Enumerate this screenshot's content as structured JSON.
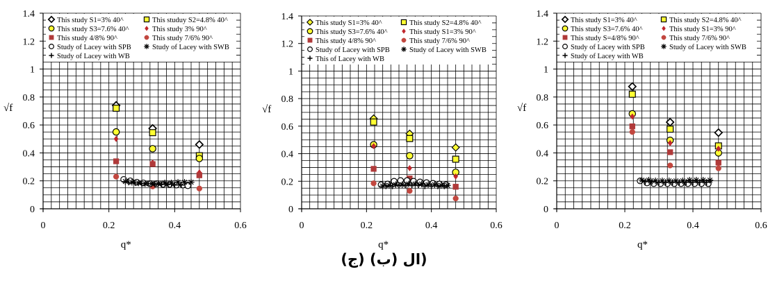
{
  "caption": "(ال   (ب) (ج)",
  "colors": {
    "grid": "#000000",
    "yellow_fill": "#ffff33",
    "red_dark": "#b03a3a",
    "red_bright": "#c0262c",
    "red_dot": "#c2473f",
    "outline": "#000000"
  },
  "chart_data": [
    {
      "id": "a",
      "type": "scatter",
      "xlabel": "q*",
      "ylabel": "√f",
      "xlim": [
        0,
        0.6
      ],
      "ylim": [
        0,
        1.4
      ],
      "xticks": [
        "0",
        "0.2",
        "0.4",
        "0.6"
      ],
      "yticks": [
        "0",
        "0.2",
        "0.4",
        "0.6",
        "0.8",
        "1",
        "1.2",
        "1.4"
      ],
      "grid": true,
      "legend_position": "top",
      "legend": [
        {
          "label": "This study S1=3% 40^",
          "marker": "diamond-open"
        },
        {
          "label": "This studuy S2=4.8% 40^",
          "marker": "square-yellow"
        },
        {
          "label": "This study S3=7.6% 40^",
          "marker": "circle-yellow"
        },
        {
          "label": "This study 3% 90^",
          "marker": "diamond-red"
        },
        {
          "label": "This study 4/8% 90^",
          "marker": "square-red"
        },
        {
          "label": "This study 7/6% 90^",
          "marker": "circle-red"
        },
        {
          "label": "Study of Lacey with SPB",
          "marker": "circle-open"
        },
        {
          "label": "Study of Lacey with SWB",
          "marker": "asterisk"
        },
        {
          "label": "Study of Lacey with WB",
          "marker": "plus"
        }
      ],
      "series": [
        {
          "marker": "diamond-open",
          "x": [
            0.222,
            0.333,
            0.475
          ],
          "y": [
            0.74,
            0.575,
            0.46
          ]
        },
        {
          "marker": "square-yellow",
          "x": [
            0.222,
            0.333,
            0.475
          ],
          "y": [
            0.72,
            0.545,
            0.38
          ]
        },
        {
          "marker": "circle-yellow",
          "x": [
            0.222,
            0.333,
            0.475
          ],
          "y": [
            0.55,
            0.43,
            0.36
          ]
        },
        {
          "marker": "diamond-red",
          "x": [
            0.222,
            0.333,
            0.475
          ],
          "y": [
            0.5,
            0.33,
            0.26
          ]
        },
        {
          "marker": "square-red",
          "x": [
            0.222,
            0.333,
            0.475
          ],
          "y": [
            0.34,
            0.32,
            0.24
          ]
        },
        {
          "marker": "circle-red",
          "x": [
            0.222,
            0.333,
            0.475
          ],
          "y": [
            0.23,
            0.16,
            0.145
          ]
        },
        {
          "marker": "circle-open",
          "x": [
            0.245,
            0.265,
            0.285,
            0.305,
            0.325,
            0.345,
            0.365,
            0.385,
            0.405,
            0.425,
            0.44
          ],
          "y": [
            0.21,
            0.2,
            0.19,
            0.185,
            0.18,
            0.18,
            0.175,
            0.175,
            0.17,
            0.17,
            0.165
          ]
        },
        {
          "marker": "asterisk",
          "x": [
            0.25,
            0.27,
            0.29,
            0.31,
            0.33,
            0.35,
            0.37,
            0.39,
            0.41,
            0.43,
            0.45
          ],
          "y": [
            0.195,
            0.19,
            0.185,
            0.18,
            0.18,
            0.18,
            0.185,
            0.185,
            0.19,
            0.19,
            0.19
          ]
        },
        {
          "marker": "plus",
          "x": [
            0.26,
            0.28,
            0.3,
            0.32,
            0.34,
            0.36,
            0.38,
            0.4,
            0.42
          ],
          "y": [
            0.19,
            0.185,
            0.18,
            0.18,
            0.175,
            0.175,
            0.175,
            0.17,
            0.17
          ]
        }
      ]
    },
    {
      "id": "b",
      "type": "scatter",
      "xlabel": "q*",
      "ylabel": "√f",
      "xlim": [
        0,
        0.6
      ],
      "ylim": [
        0,
        1.4
      ],
      "xticks": [
        "0",
        "0.2",
        "0.4",
        "0.6"
      ],
      "yticks": [
        "0",
        "0.2",
        "0.4",
        "0.6",
        "0.8",
        "1",
        "1.2",
        "1.4"
      ],
      "grid": true,
      "legend_position": "top",
      "legend": [
        {
          "label": "This study S1=3% 40^",
          "marker": "diamond-yellow"
        },
        {
          "label": "This study S2=4.8% 40^",
          "marker": "square-yellow"
        },
        {
          "label": "This study S3=7.6% 40^",
          "marker": "circle-yellow"
        },
        {
          "label": "This study S1=3% 90^",
          "marker": "diamond-red"
        },
        {
          "label": "This study 4/8% 90^",
          "marker": "square-red"
        },
        {
          "label": "This study 7/6% 90^",
          "marker": "circle-red"
        },
        {
          "label": "Study of Lacey with SPB",
          "marker": "circle-open"
        },
        {
          "label": "Study of Lacey with SWB",
          "marker": "asterisk"
        },
        {
          "label": "This of Lacey with WB",
          "marker": "plus"
        }
      ],
      "series": [
        {
          "marker": "diamond-yellow",
          "x": [
            0.222,
            0.333,
            0.475
          ],
          "y": [
            0.655,
            0.545,
            0.445
          ]
        },
        {
          "marker": "square-yellow",
          "x": [
            0.222,
            0.333,
            0.475
          ],
          "y": [
            0.63,
            0.51,
            0.36
          ]
        },
        {
          "marker": "circle-yellow",
          "x": [
            0.222,
            0.333,
            0.475
          ],
          "y": [
            0.465,
            0.385,
            0.265
          ]
        },
        {
          "marker": "diamond-red",
          "x": [
            0.222,
            0.333,
            0.475
          ],
          "y": [
            0.455,
            0.295,
            0.235
          ]
        },
        {
          "marker": "square-red",
          "x": [
            0.222,
            0.333,
            0.475
          ],
          "y": [
            0.29,
            0.22,
            0.16
          ]
        },
        {
          "marker": "circle-red",
          "x": [
            0.222,
            0.333,
            0.475
          ],
          "y": [
            0.185,
            0.13,
            0.075
          ]
        },
        {
          "marker": "circle-open",
          "x": [
            0.245,
            0.265,
            0.285,
            0.305,
            0.325,
            0.345,
            0.365,
            0.385,
            0.405,
            0.425,
            0.445
          ],
          "y": [
            0.175,
            0.18,
            0.2,
            0.205,
            0.205,
            0.2,
            0.195,
            0.19,
            0.185,
            0.18,
            0.175
          ]
        },
        {
          "marker": "asterisk",
          "x": [
            0.25,
            0.27,
            0.29,
            0.31,
            0.33,
            0.35,
            0.37,
            0.39,
            0.41,
            0.43,
            0.45
          ],
          "y": [
            0.165,
            0.17,
            0.175,
            0.175,
            0.18,
            0.18,
            0.18,
            0.175,
            0.175,
            0.17,
            0.17
          ]
        },
        {
          "marker": "plus",
          "x": [
            0.26,
            0.28,
            0.3,
            0.32,
            0.34,
            0.36,
            0.38,
            0.4,
            0.42,
            0.44
          ],
          "y": [
            0.165,
            0.165,
            0.17,
            0.17,
            0.17,
            0.17,
            0.165,
            0.165,
            0.165,
            0.165
          ]
        }
      ]
    },
    {
      "id": "c",
      "type": "scatter",
      "xlabel": "q*",
      "ylabel": "√f",
      "xlim": [
        0,
        0.6
      ],
      "ylim": [
        0,
        1.4
      ],
      "xticks": [
        "0",
        "0.2",
        "0.4",
        "0.6"
      ],
      "yticks": [
        "0",
        "0.2",
        "0.4",
        "0.6",
        "0.8",
        "1",
        "1.2",
        "1.4"
      ],
      "grid": true,
      "legend_position": "top",
      "legend": [
        {
          "label": "This study S1=3% 40^",
          "marker": "diamond-open"
        },
        {
          "label": "This study S2=4.8% 40^",
          "marker": "square-yellow"
        },
        {
          "label": "This study S3=7.6% 40^",
          "marker": "circle-yellow"
        },
        {
          "label": "This study S1=3% 90^",
          "marker": "diamond-red"
        },
        {
          "label": "This study S=4/8% 90^",
          "marker": "square-red"
        },
        {
          "label": "This study 7/6% 90^",
          "marker": "circle-red"
        },
        {
          "label": "Study of Lacey with SPB",
          "marker": "circle-open"
        },
        {
          "label": "Study of Lacey with SWB",
          "marker": "asterisk"
        },
        {
          "label": "Study of Lacey with WB",
          "marker": "plus"
        }
      ],
      "series": [
        {
          "marker": "diamond-open",
          "x": [
            0.222,
            0.333,
            0.475
          ],
          "y": [
            0.875,
            0.62,
            0.545
          ]
        },
        {
          "marker": "square-yellow",
          "x": [
            0.222,
            0.333,
            0.475
          ],
          "y": [
            0.82,
            0.57,
            0.45
          ]
        },
        {
          "marker": "circle-yellow",
          "x": [
            0.222,
            0.333,
            0.475
          ],
          "y": [
            0.68,
            0.49,
            0.4
          ]
        },
        {
          "marker": "diamond-red",
          "x": [
            0.222,
            0.333,
            0.475
          ],
          "y": [
            0.66,
            0.47,
            0.43
          ]
        },
        {
          "marker": "square-red",
          "x": [
            0.222,
            0.333,
            0.475
          ],
          "y": [
            0.59,
            0.405,
            0.33
          ]
        },
        {
          "marker": "circle-red",
          "x": [
            0.222,
            0.333,
            0.475
          ],
          "y": [
            0.55,
            0.31,
            0.29
          ]
        },
        {
          "marker": "circle-open",
          "x": [
            0.245,
            0.265,
            0.285,
            0.305,
            0.325,
            0.345,
            0.365,
            0.385,
            0.405,
            0.425,
            0.445
          ],
          "y": [
            0.2,
            0.185,
            0.18,
            0.18,
            0.18,
            0.18,
            0.18,
            0.18,
            0.18,
            0.18,
            0.18
          ]
        },
        {
          "marker": "asterisk",
          "x": [
            0.25,
            0.27,
            0.29,
            0.31,
            0.33,
            0.35,
            0.37,
            0.39,
            0.41,
            0.43,
            0.45
          ],
          "y": [
            0.205,
            0.205,
            0.2,
            0.2,
            0.2,
            0.2,
            0.2,
            0.205,
            0.205,
            0.205,
            0.205
          ]
        },
        {
          "marker": "plus",
          "x": [
            0.26,
            0.28,
            0.3,
            0.32,
            0.34,
            0.36,
            0.38,
            0.4,
            0.42,
            0.44
          ],
          "y": [
            0.195,
            0.195,
            0.19,
            0.19,
            0.19,
            0.19,
            0.19,
            0.19,
            0.19,
            0.19
          ]
        }
      ]
    }
  ]
}
